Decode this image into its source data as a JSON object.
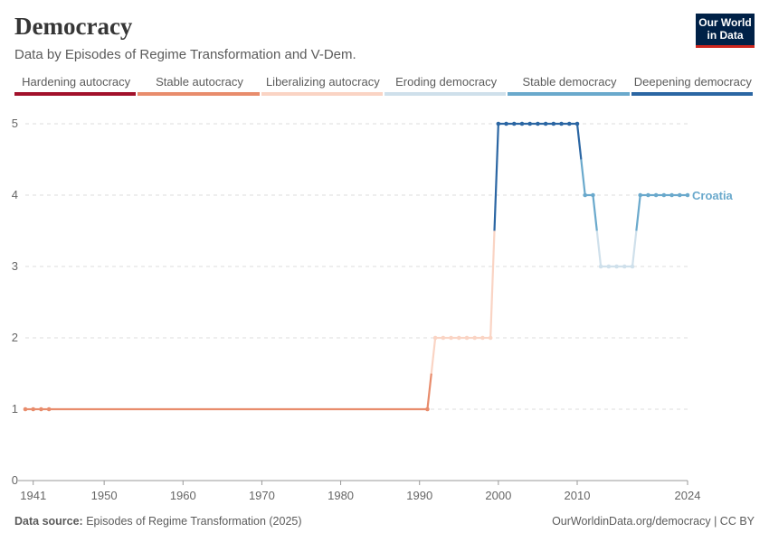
{
  "header": {
    "title": "Democracy",
    "subtitle": "Data by Episodes of Regime Transformation and V-Dem.",
    "logo_line1": "Our World",
    "logo_line2": "in Data"
  },
  "footer": {
    "source_label": "Data source:",
    "source_text": "Episodes of Regime Transformation (2025)",
    "credit": "OurWorldinData.org/democracy | CC BY"
  },
  "colors": {
    "hardening_autocracy": "#a2112b",
    "stable_autocracy": "#e88c6c",
    "liberalizing_autocracy": "#fad4c4",
    "eroding_democracy": "#cfe0eb",
    "stable_democracy": "#6aa9cc",
    "deepening_democracy": "#2b66a3"
  },
  "chart_data": {
    "type": "line",
    "title": "Democracy",
    "subtitle": "Data by Episodes of Regime Transformation and V-Dem.",
    "xlabel": "",
    "ylabel": "",
    "xlim": [
      1940,
      2024
    ],
    "ylim": [
      0,
      5
    ],
    "x_ticks": [
      "1941",
      "1950",
      "1960",
      "1970",
      "1980",
      "1990",
      "2000",
      "2010",
      "2024"
    ],
    "y_ticks": [
      "0",
      "1",
      "2",
      "3",
      "4",
      "5"
    ],
    "grid": "horizontal dashed",
    "legend": {
      "placement": "top",
      "entries": [
        {
          "label": "Hardening autocracy",
          "color_key": "hardening_autocracy"
        },
        {
          "label": "Stable autocracy",
          "color_key": "stable_autocracy"
        },
        {
          "label": "Liberalizing autocracy",
          "color_key": "liberalizing_autocracy"
        },
        {
          "label": "Eroding democracy",
          "color_key": "eroding_democracy"
        },
        {
          "label": "Stable democracy",
          "color_key": "stable_democracy"
        },
        {
          "label": "Deepening democracy",
          "color_key": "deepening_democracy"
        }
      ]
    },
    "series": [
      {
        "name": "Croatia",
        "x": [
          1940,
          1941,
          1942,
          1943,
          1991,
          1992,
          1993,
          1994,
          1995,
          1996,
          1997,
          1998,
          1999,
          2000,
          2001,
          2002,
          2003,
          2004,
          2005,
          2006,
          2007,
          2008,
          2009,
          2010,
          2011,
          2012,
          2013,
          2014,
          2015,
          2016,
          2017,
          2018,
          2019,
          2020,
          2021,
          2022,
          2023,
          2024
        ],
        "values": [
          1,
          1,
          1,
          1,
          1,
          2,
          2,
          2,
          2,
          2,
          2,
          2,
          2,
          5,
          5,
          5,
          5,
          5,
          5,
          5,
          5,
          5,
          5,
          5,
          4,
          4,
          3,
          3,
          3,
          3,
          3,
          4,
          4,
          4,
          4,
          4,
          4,
          4
        ],
        "categories": [
          "stable_autocracy",
          "stable_autocracy",
          "stable_autocracy",
          "stable_autocracy",
          "stable_autocracy",
          "liberalizing_autocracy",
          "liberalizing_autocracy",
          "liberalizing_autocracy",
          "liberalizing_autocracy",
          "liberalizing_autocracy",
          "liberalizing_autocracy",
          "liberalizing_autocracy",
          "liberalizing_autocracy",
          "deepening_democracy",
          "deepening_democracy",
          "deepening_democracy",
          "deepening_democracy",
          "deepening_democracy",
          "deepening_democracy",
          "deepening_democracy",
          "deepening_democracy",
          "deepening_democracy",
          "deepening_democracy",
          "deepening_democracy",
          "stable_democracy",
          "stable_democracy",
          "eroding_democracy",
          "eroding_democracy",
          "eroding_democracy",
          "eroding_democracy",
          "eroding_democracy",
          "stable_democracy",
          "stable_democracy",
          "stable_democracy",
          "stable_democracy",
          "stable_democracy",
          "stable_democracy",
          "stable_democracy"
        ]
      }
    ]
  }
}
